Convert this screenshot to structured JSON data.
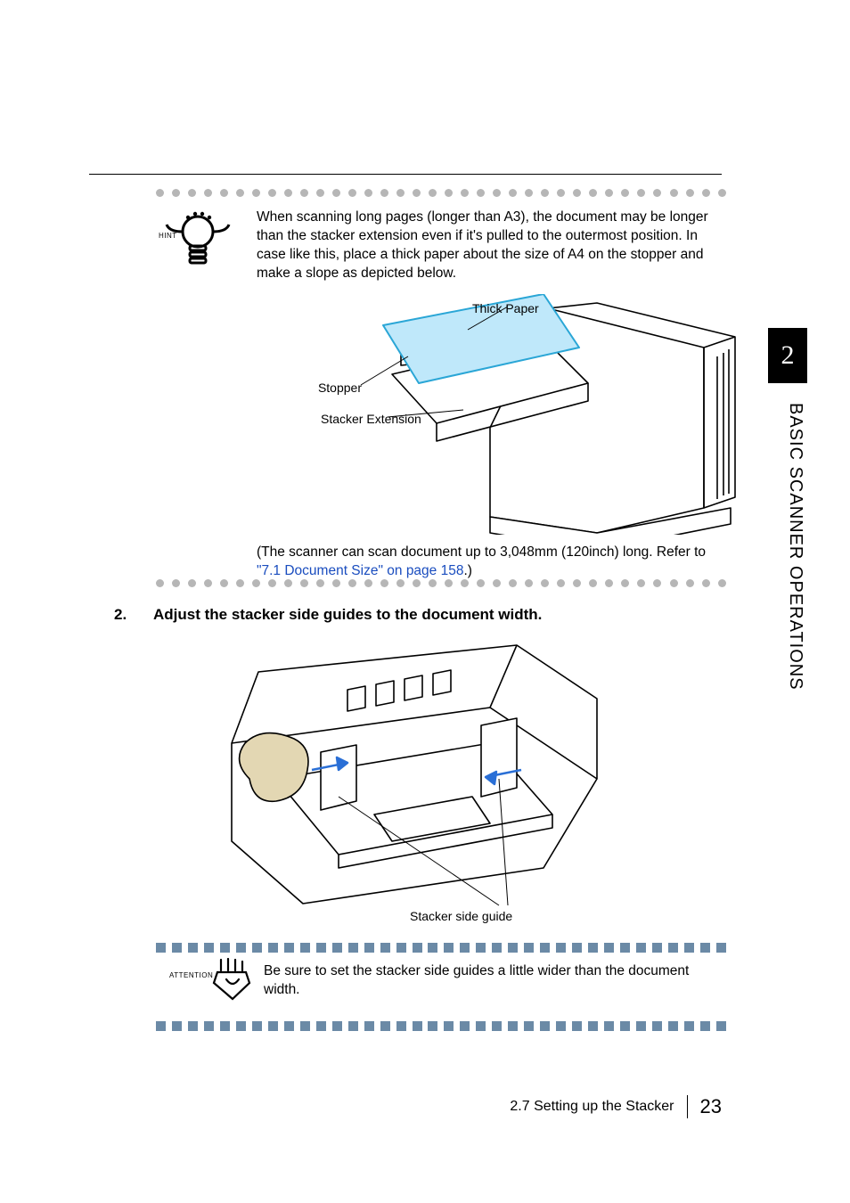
{
  "chapter": {
    "number": "2",
    "title": "BASIC SCANNER OPERATIONS"
  },
  "hint": {
    "label": "HINT",
    "text": "When scanning long pages (longer than A3), the document may be longer than the stacker extension even if it's pulled to the outermost position. In case like this, place a thick paper about the size of A4 on the stopper and make a slope as depicted below."
  },
  "figure1": {
    "labels": {
      "thick_paper": "Thick Paper",
      "stopper": "Stopper",
      "stacker_ext": "Stacker Extension"
    },
    "colors": {
      "paper_stroke": "#2aa6d6",
      "paper_fill": "#bfe8fa",
      "line": "#000000"
    }
  },
  "post_figure": {
    "text_before_link": "(The scanner can scan document up to 3,048mm (120inch) long. Refer to ",
    "link_text": "\"7.1 Document Size\" on page 158",
    "text_after_link": ".)"
  },
  "step": {
    "number": "2.",
    "text": "Adjust the stacker side guides to the document width."
  },
  "figure2": {
    "label": "Stacker side guide",
    "colors": {
      "arrow": "#2a6fd6",
      "hand_fill": "#e3d7b3",
      "line": "#000000"
    }
  },
  "attention": {
    "label": "ATTENTION",
    "text": "Be sure to set the stacker side guides a little wider than the document width."
  },
  "footer": {
    "section": "2.7 Setting up the Stacker",
    "page": "23"
  },
  "style": {
    "dot_color": "#b6b6b6",
    "square_color": "#6b8aa6",
    "dot_count": 36,
    "square_count": 36
  }
}
